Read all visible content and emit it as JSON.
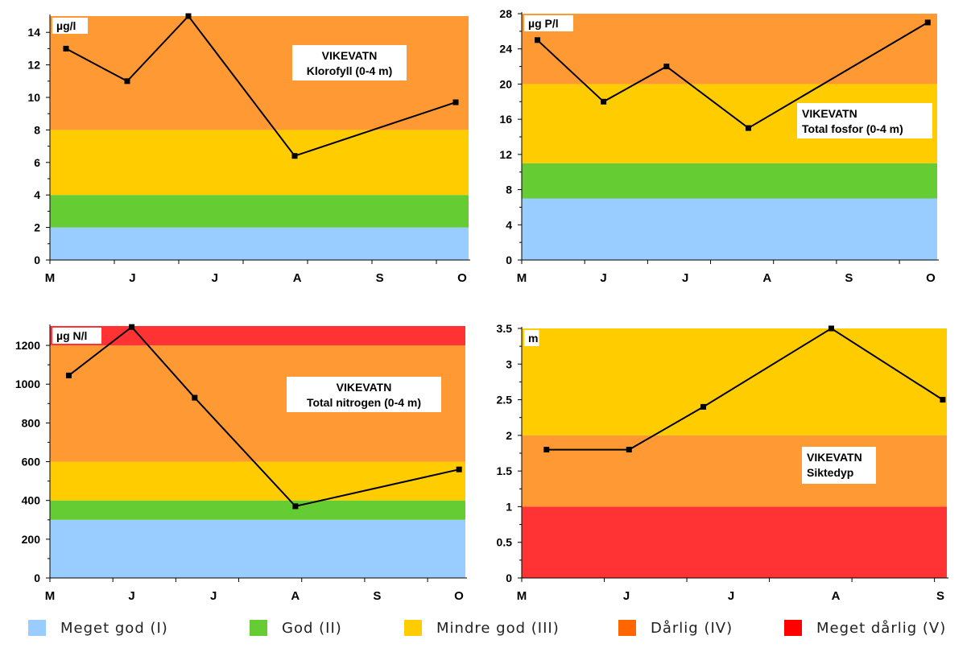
{
  "colors": {
    "meget_god": "#99ccff",
    "god": "#66cc33",
    "mindre_god": "#ffcc00",
    "darlig": "#ff9933",
    "meget_darlig": "#ff3333",
    "line": "#000000"
  },
  "legend": [
    {
      "label": "Meget god (I)",
      "color": "#99ccff"
    },
    {
      "label": "God (II)",
      "color": "#66cc33"
    },
    {
      "label": "Mindre god (III)",
      "color": "#ffcc00"
    },
    {
      "label": "Dårlig (IV)",
      "color": "#ff6600"
    },
    {
      "label": "Meget dårlig (V)",
      "color": "#ff0000"
    }
  ],
  "chart_data": [
    {
      "type": "line",
      "title": "VIKEVATN",
      "subtitle": "Klorofyll (0-4 m)",
      "unit_label": "µg/l",
      "ylim": [
        0,
        15
      ],
      "yticks": [
        0,
        2,
        4,
        6,
        8,
        10,
        12,
        14
      ],
      "xtick_labels": [
        "M",
        "J",
        "J",
        "A",
        "S",
        "O"
      ],
      "xlim": [
        0,
        6.5
      ],
      "bands": [
        {
          "from": 0,
          "to": 2,
          "class": "meget_god"
        },
        {
          "from": 2,
          "to": 4,
          "class": "god"
        },
        {
          "from": 4,
          "to": 8,
          "class": "mindre_god"
        },
        {
          "from": 8,
          "to": 15,
          "class": "darlig"
        }
      ],
      "series": [
        {
          "x": [
            0.25,
            1.2,
            2.15,
            3.8,
            6.3
          ],
          "y": [
            13,
            11,
            15,
            6.4,
            9.7
          ]
        }
      ]
    },
    {
      "type": "line",
      "title": "VIKEVATN",
      "subtitle": "Total fosfor (0-4 m)",
      "unit_label": "µg P/l",
      "ylim": [
        0,
        28
      ],
      "yticks": [
        0,
        4,
        8,
        12,
        16,
        20,
        24,
        28
      ],
      "xtick_labels": [
        "M",
        "J",
        "J",
        "A",
        "S",
        "O"
      ],
      "xlim": [
        0,
        6.6
      ],
      "bands": [
        {
          "from": 0,
          "to": 7,
          "class": "meget_god"
        },
        {
          "from": 7,
          "to": 11,
          "class": "god"
        },
        {
          "from": 11,
          "to": 20,
          "class": "mindre_god"
        },
        {
          "from": 20,
          "to": 28,
          "class": "darlig"
        }
      ],
      "series": [
        {
          "x": [
            0.25,
            1.3,
            2.3,
            3.6,
            6.45
          ],
          "y": [
            25,
            18,
            22,
            15,
            27
          ]
        }
      ]
    },
    {
      "type": "line",
      "title": "VIKEVATN",
      "subtitle": "Total nitrogen (0-4 m)",
      "unit_label": "µg N/l",
      "ylim": [
        0,
        1300
      ],
      "yticks": [
        0,
        200,
        400,
        600,
        800,
        1000,
        1200
      ],
      "xtick_labels": [
        "M",
        "J",
        "J",
        "A",
        "S",
        "O"
      ],
      "xlim": [
        0,
        6.6
      ],
      "bands": [
        {
          "from": 0,
          "to": 300,
          "class": "meget_god"
        },
        {
          "from": 300,
          "to": 400,
          "class": "god"
        },
        {
          "from": 400,
          "to": 600,
          "class": "mindre_god"
        },
        {
          "from": 600,
          "to": 1200,
          "class": "darlig"
        },
        {
          "from": 1200,
          "to": 1300,
          "class": "meget_darlig"
        }
      ],
      "series": [
        {
          "x": [
            0.3,
            1.3,
            2.3,
            3.9,
            6.5
          ],
          "y": [
            1045,
            1295,
            930,
            370,
            560
          ]
        }
      ]
    },
    {
      "type": "line",
      "title": "VIKEVATN",
      "subtitle": "Siktedyp",
      "unit_label": "m",
      "ylim": [
        0,
        3.5
      ],
      "yticks": [
        0,
        0.5,
        1,
        1.5,
        2,
        2.5,
        3,
        3.5
      ],
      "xtick_labels": [
        "M",
        "J",
        "J",
        "A",
        "S"
      ],
      "xlim": [
        0,
        5.15
      ],
      "bands": [
        {
          "from": 0,
          "to": 1,
          "class": "meget_darlig"
        },
        {
          "from": 1,
          "to": 2,
          "class": "darlig"
        },
        {
          "from": 2,
          "to": 3.5,
          "class": "mindre_god"
        }
      ],
      "series": [
        {
          "x": [
            0.3,
            1.3,
            2.2,
            3.75,
            5.1
          ],
          "y": [
            1.8,
            1.8,
            2.4,
            3.5,
            2.5
          ]
        }
      ]
    }
  ]
}
